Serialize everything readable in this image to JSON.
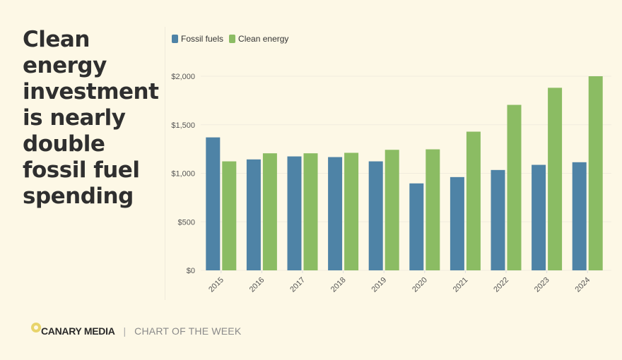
{
  "headline": "Clean energy investment is nearly double fossil fuel spending",
  "footer": {
    "brand": "CANARY MEDIA",
    "separator": "|",
    "tagline": "CHART OF THE WEEK"
  },
  "chart_data": {
    "type": "bar",
    "title": "Clean energy investment is nearly double fossil fuel spending",
    "xlabel": "",
    "ylabel": "",
    "categories": [
      "2015",
      "2016",
      "2017",
      "2018",
      "2019",
      "2020",
      "2021",
      "2022",
      "2023",
      "2024"
    ],
    "series": [
      {
        "name": "Fossil fuels",
        "color": "#4e83a6",
        "values": [
          1370,
          1143,
          1174,
          1167,
          1123,
          896,
          961,
          1034,
          1087,
          1114
        ]
      },
      {
        "name": "Clean energy",
        "color": "#8bbc63",
        "values": [
          1123,
          1206,
          1206,
          1211,
          1242,
          1247,
          1429,
          1705,
          1881,
          2000
        ]
      }
    ],
    "ylim": [
      0,
      2000
    ],
    "yticks": [
      0,
      500,
      1000,
      1500,
      2000
    ],
    "ytick_labels": [
      "$0",
      "$500",
      "$1,000",
      "$1,500",
      "$2,000"
    ],
    "grid": true,
    "legend": "top-left"
  }
}
